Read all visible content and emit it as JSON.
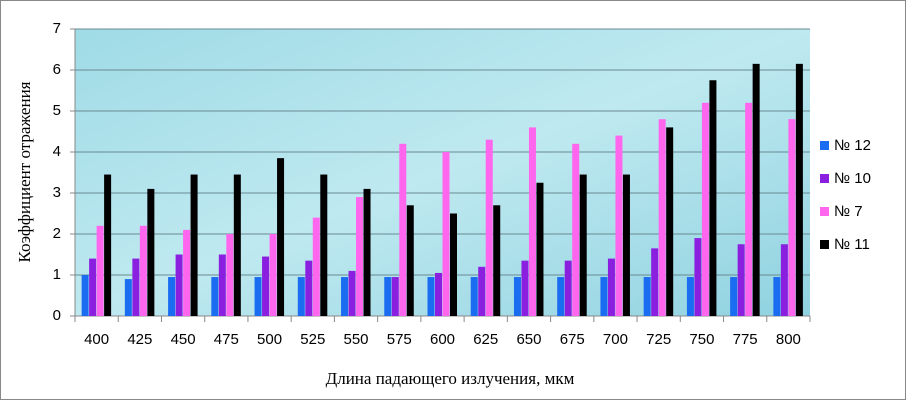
{
  "chart_data": {
    "type": "bar",
    "x_label": "Длина падающего излучения, мкм",
    "y_label": "Коэффициент отражения",
    "categories": [
      "400",
      "425",
      "450",
      "475",
      "500",
      "525",
      "550",
      "575",
      "600",
      "625",
      "650",
      "675",
      "700",
      "725",
      "750",
      "775",
      "800"
    ],
    "series": [
      {
        "name": "№ 12",
        "color": "#1a6cf0",
        "values": [
          1.0,
          0.9,
          0.95,
          0.95,
          0.95,
          0.95,
          0.95,
          0.95,
          0.95,
          0.95,
          0.95,
          0.95,
          0.95,
          0.95,
          0.95,
          0.95,
          0.95
        ]
      },
      {
        "name": "№ 10",
        "color": "#8a1fe0",
        "values": [
          1.4,
          1.4,
          1.5,
          1.5,
          1.45,
          1.35,
          1.1,
          0.95,
          1.05,
          1.2,
          1.35,
          1.35,
          1.4,
          1.65,
          1.9,
          1.75,
          1.75
        ]
      },
      {
        "name": "№ 7",
        "color": "#ff66ee",
        "values": [
          2.2,
          2.2,
          2.1,
          2.0,
          2.0,
          2.4,
          2.9,
          4.2,
          4.0,
          4.3,
          4.6,
          4.2,
          4.4,
          4.8,
          5.2,
          5.2,
          4.8
        ]
      },
      {
        "name": "№ 11",
        "color": "#000000",
        "values": [
          3.45,
          3.1,
          3.45,
          3.45,
          3.85,
          3.45,
          3.1,
          2.7,
          2.5,
          2.7,
          3.25,
          3.45,
          3.45,
          4.6,
          5.75,
          6.15,
          6.15
        ]
      }
    ],
    "ylim": [
      0,
      7
    ],
    "yticks": [
      0,
      1,
      2,
      3,
      4,
      5,
      6,
      7
    ],
    "grid": true,
    "legend": "right"
  }
}
